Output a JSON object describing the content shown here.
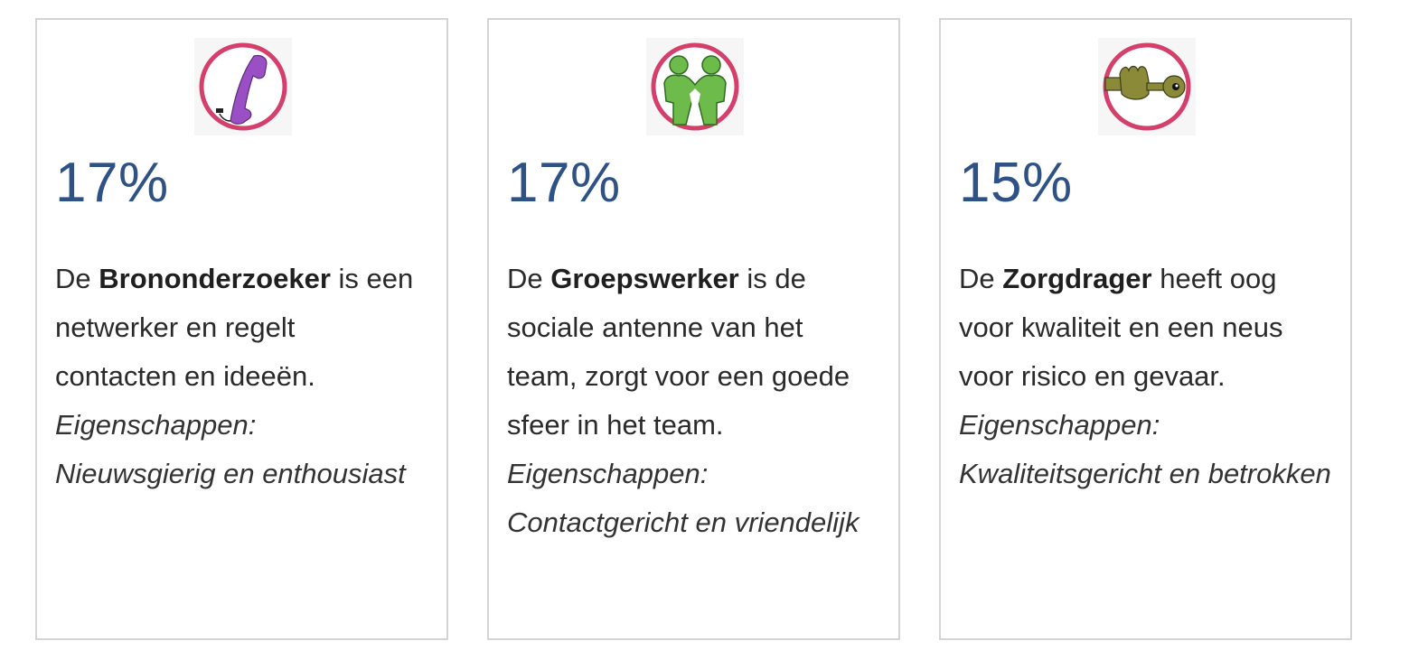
{
  "cards": [
    {
      "percent": "17%",
      "icon": "phone-icon",
      "prefix": "De ",
      "role": "Brononderzoeker",
      "desc_line1_rest": " is een",
      "desc_line2": "netwerker en regelt",
      "desc_line3": "contacten en ideeën.",
      "props_line1": "Eigenschappen:",
      "props_line2": "Nieuwsgierig en",
      "props_line3": "enthousiast"
    },
    {
      "percent": "17%",
      "icon": "two-people-icon",
      "prefix": "De ",
      "role": "Groepswerker",
      "desc_line1_rest": " is de",
      "desc_line2": "sociale antenne van het",
      "desc_line3": "team, zorgt voor een goede",
      "desc_line4": "sfeer in het team.",
      "props_line1": "Eigenschappen:",
      "props_line2": "Contactgericht en",
      "props_line3": "vriendelijk"
    },
    {
      "percent": "15%",
      "icon": "hand-key-icon",
      "prefix": "De ",
      "role": "Zorgdrager",
      "desc_line1_rest": " heeft oog",
      "desc_line2": "voor kwaliteit en een neus",
      "desc_line3": "voor risico en gevaar.",
      "props_line1": "Eigenschappen:",
      "props_line2": "Kwaliteitsgericht en",
      "props_line3": "betrokken"
    }
  ],
  "colors": {
    "percent": "#2e5186",
    "icon_ring": "#d43f6b",
    "phone": "#9b4fc4",
    "people": "#6dbb4a",
    "hand_key": "#8a8a38",
    "border": "#d4d4d4"
  }
}
